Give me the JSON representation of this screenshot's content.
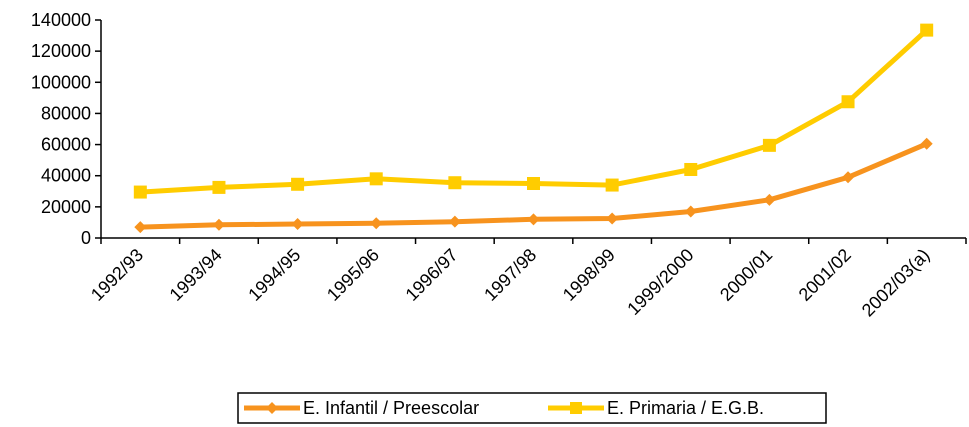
{
  "chart_data": {
    "type": "line",
    "title": "",
    "xlabel": "",
    "ylabel": "",
    "categories": [
      "1992/93",
      "1993/94",
      "1994/95",
      "1995/96",
      "1996/97",
      "1997/98",
      "1998/99",
      "1999/2000",
      "2000/01",
      "2001/02",
      "2002/03(a)"
    ],
    "ylim": [
      0,
      140000
    ],
    "yticks": [
      "0",
      "20000",
      "40000",
      "60000",
      "80000",
      "100000",
      "120000",
      "140000"
    ],
    "grid": false,
    "legend": "bottom",
    "series": [
      {
        "name": "E. Infantil / Preescolar",
        "color": "#F7931E",
        "marker": "diamond",
        "values": [
          7000,
          8500,
          9000,
          9500,
          10500,
          12000,
          12500,
          17000,
          24500,
          39000,
          60500
        ]
      },
      {
        "name": "E. Primaria / E.G.B.",
        "color": "#FFCC00",
        "marker": "square",
        "values": [
          29500,
          32500,
          34500,
          38000,
          35500,
          35000,
          34000,
          44000,
          59500,
          87500,
          133500
        ]
      }
    ]
  }
}
